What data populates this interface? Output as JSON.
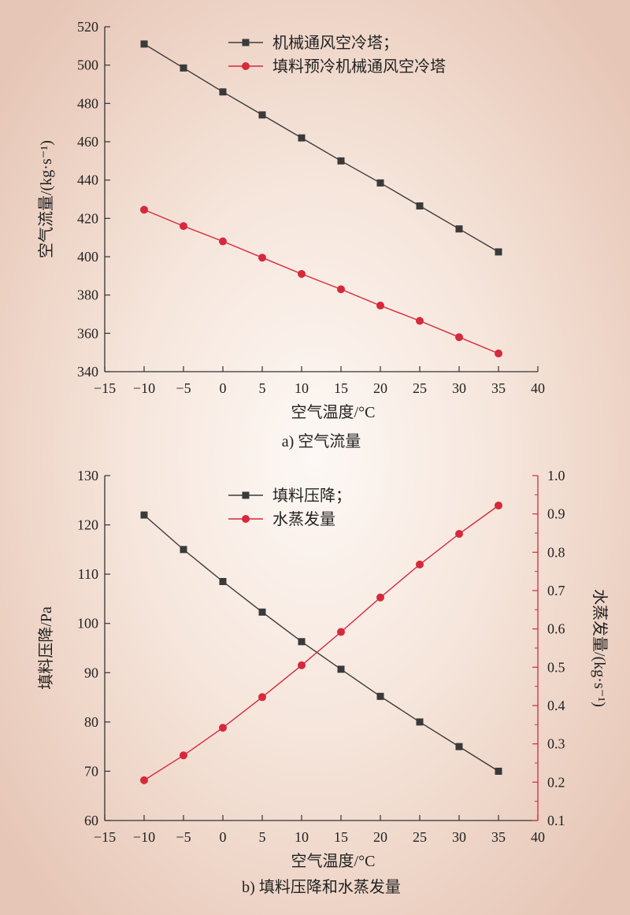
{
  "chart_data": [
    {
      "type": "line",
      "caption": "a) 空气流量",
      "xlabel": "空气温度/°C",
      "ylabel": "空气流量/(kg·s⁻¹)",
      "xlim": [
        -15,
        40
      ],
      "ylim": [
        340,
        520
      ],
      "xticks": [
        -15,
        -10,
        -5,
        0,
        5,
        10,
        15,
        20,
        25,
        30,
        35,
        40
      ],
      "yticks": [
        340,
        360,
        380,
        400,
        420,
        440,
        460,
        480,
        500,
        520
      ],
      "xtick_labels": [
        "−15",
        "−10",
        "−5",
        "0",
        "5",
        "10",
        "15",
        "20",
        "25",
        "30",
        "35",
        "40"
      ],
      "ytick_labels": [
        "340",
        "360",
        "380",
        "400",
        "420",
        "440",
        "460",
        "480",
        "500",
        "520"
      ],
      "legend_position": "top-right",
      "x": [
        -10,
        -5,
        0,
        5,
        10,
        15,
        20,
        25,
        30,
        35
      ],
      "series": [
        {
          "name": "机械通风空冷塔；",
          "color": "#3a3a3a",
          "marker": "square",
          "values": [
            511,
            498.5,
            486,
            474,
            462,
            450,
            438.5,
            426.5,
            414.5,
            402.5
          ]
        },
        {
          "name": "填料预冷机械通风空冷塔",
          "color": "#d6293b",
          "marker": "circle",
          "values": [
            424.5,
            416,
            408,
            399.5,
            391,
            383,
            374.5,
            366.5,
            358,
            349.5
          ]
        }
      ]
    },
    {
      "type": "line",
      "caption": "b) 填料压降和水蒸发量",
      "xlabel": "空气温度/°C",
      "ylabel": "填料压降/Pa",
      "y2label": "水蒸发量/(kg·s⁻¹)",
      "xlim": [
        -15,
        40
      ],
      "ylim": [
        60,
        130
      ],
      "y2lim": [
        0.1,
        1.0
      ],
      "xticks": [
        -15,
        -10,
        -5,
        0,
        5,
        10,
        15,
        20,
        25,
        30,
        35,
        40
      ],
      "yticks": [
        60,
        70,
        80,
        90,
        100,
        110,
        120,
        130
      ],
      "y2ticks": [
        0.1,
        0.2,
        0.3,
        0.4,
        0.5,
        0.6,
        0.7,
        0.8,
        0.9,
        1.0
      ],
      "xtick_labels": [
        "−15",
        "−10",
        "−5",
        "0",
        "5",
        "10",
        "15",
        "20",
        "25",
        "30",
        "35",
        "40"
      ],
      "ytick_labels": [
        "60",
        "70",
        "80",
        "90",
        "100",
        "110",
        "120",
        "130"
      ],
      "y2tick_labels": [
        "0.1",
        "0.2",
        "0.3",
        "0.4",
        "0.5",
        "0.6",
        "0.7",
        "0.8",
        "0.9",
        "1.0"
      ],
      "legend_position": "top-center",
      "x": [
        -10,
        -5,
        0,
        5,
        10,
        15,
        20,
        25,
        30,
        35
      ],
      "series": [
        {
          "name": "填料压降；",
          "color": "#3a3a3a",
          "marker": "square",
          "axis": "left",
          "values": [
            122,
            115,
            108.5,
            102.3,
            96.3,
            90.7,
            85.2,
            80,
            75,
            70
          ]
        },
        {
          "name": "水蒸发量",
          "color": "#d6293b",
          "marker": "circle",
          "axis": "right",
          "values": [
            0.205,
            0.27,
            0.342,
            0.422,
            0.505,
            0.592,
            0.682,
            0.768,
            0.848,
            0.922
          ]
        }
      ]
    }
  ]
}
